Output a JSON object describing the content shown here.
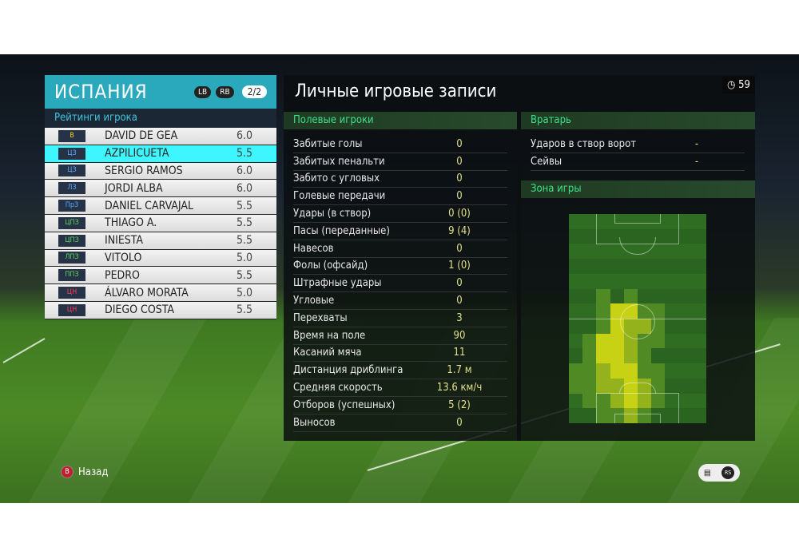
{
  "team": {
    "name": "ИСПАНИЯ",
    "lb": "LB",
    "rb": "RB",
    "page": "2/2",
    "ratings_label": "Рейтинги игрока"
  },
  "players": [
    {
      "pos": "В",
      "pos_color": "#f0d020",
      "name": "DAVID DE GEA",
      "rating": "6.0"
    },
    {
      "pos": "ЦЗ",
      "pos_color": "#5aa8ff",
      "name": "AZPILICUETA",
      "rating": "5.5",
      "selected": true
    },
    {
      "pos": "ЦЗ",
      "pos_color": "#5aa8ff",
      "name": "SERGIO RAMOS",
      "rating": "6.0"
    },
    {
      "pos": "ЛЗ",
      "pos_color": "#5aa8ff",
      "name": "JORDI ALBA",
      "rating": "6.0"
    },
    {
      "pos": "ПрЗ",
      "pos_color": "#5aa8ff",
      "name": "DANIEL CARVAJAL",
      "rating": "5.5"
    },
    {
      "pos": "ЦПЗ",
      "pos_color": "#5ed65e",
      "name": "THIAGO A.",
      "rating": "5.5"
    },
    {
      "pos": "ЦПЗ",
      "pos_color": "#5ed65e",
      "name": "INIESTA",
      "rating": "5.5"
    },
    {
      "pos": "ЛПЗ",
      "pos_color": "#5ed65e",
      "name": "VITOLO",
      "rating": "5.0"
    },
    {
      "pos": "ППЗ",
      "pos_color": "#5ed65e",
      "name": "PEDRO",
      "rating": "5.5"
    },
    {
      "pos": "ЦН",
      "pos_color": "#ff3b5c",
      "name": "ÁLVARO MORATA",
      "rating": "5.0"
    },
    {
      "pos": "ЦН",
      "pos_color": "#ff3b5c",
      "name": "DIEGO COSTA",
      "rating": "5.5"
    }
  ],
  "main": {
    "title": "Личные игровые записи",
    "timer": "59",
    "timer_icon": "clock-icon"
  },
  "field": {
    "title": "Полевые игроки",
    "stats": [
      {
        "label": "Забитые голы",
        "value": "0"
      },
      {
        "label": "Забитых пенальти",
        "value": "0"
      },
      {
        "label": "Забито с угловых",
        "value": "0"
      },
      {
        "label": "Голевые передачи",
        "value": "0"
      },
      {
        "label": "Удары (в створ)",
        "value": "0 (0)"
      },
      {
        "label": "Пасы (переданные)",
        "value": "9 (4)"
      },
      {
        "label": "Навесов",
        "value": "0"
      },
      {
        "label": "Фолы (офсайд)",
        "value": "1 (0)"
      },
      {
        "label": "Штрафные удары",
        "value": "0"
      },
      {
        "label": "Угловые",
        "value": "0"
      },
      {
        "label": "Перехваты",
        "value": "3"
      },
      {
        "label": "Время на поле",
        "value": "90"
      },
      {
        "label": "Касаний мяча",
        "value": "11"
      },
      {
        "label": "Дистанция дриблинга",
        "value": "1.7 м"
      },
      {
        "label": "Средняя скорость",
        "value": "13.6 км/ч"
      },
      {
        "label": "Отборов (успешных)",
        "value": "5 (2)"
      },
      {
        "label": "Выносов",
        "value": "0"
      }
    ]
  },
  "goalkeeper": {
    "title": "Вратарь",
    "stats": [
      {
        "label": "Ударов в створ ворот",
        "value": "-"
      },
      {
        "label": "Сейвы",
        "value": "-"
      }
    ]
  },
  "zone": {
    "title": "Зона игры",
    "heatmap": [
      [
        0,
        0,
        0,
        0,
        0,
        0,
        0,
        0,
        0,
        0
      ],
      [
        0,
        0,
        0,
        0,
        0,
        0,
        0,
        0,
        0,
        0
      ],
      [
        0,
        0,
        0,
        0,
        0,
        0,
        0,
        0,
        0,
        0
      ],
      [
        0,
        0,
        0,
        0,
        0,
        0,
        0,
        0,
        0,
        0
      ],
      [
        0,
        0,
        0,
        0,
        0,
        0,
        0,
        0,
        0,
        0
      ],
      [
        0,
        0,
        1,
        0,
        1,
        0,
        0,
        0,
        0,
        0
      ],
      [
        0,
        0,
        1,
        3,
        3,
        1,
        1,
        0,
        0,
        0
      ],
      [
        0,
        0,
        1,
        3,
        2,
        2,
        1,
        0,
        0,
        0
      ],
      [
        0,
        1,
        3,
        3,
        2,
        1,
        1,
        0,
        0,
        0
      ],
      [
        0,
        1,
        3,
        3,
        2,
        1,
        0,
        0,
        0,
        0
      ],
      [
        1,
        1,
        2,
        3,
        3,
        1,
        1,
        0,
        0,
        0
      ],
      [
        1,
        1,
        2,
        2,
        3,
        2,
        1,
        0,
        0,
        0
      ],
      [
        0,
        1,
        1,
        2,
        3,
        2,
        1,
        0,
        0,
        0
      ],
      [
        0,
        0,
        1,
        1,
        2,
        1,
        0,
        0,
        0,
        0
      ]
    ],
    "colors": [
      "#2f6e22",
      "#4f8a24",
      "#93b21c",
      "#c8d214"
    ]
  },
  "footer": {
    "back_button": "B",
    "back_label": "Назад",
    "chat_icon": "chat-icon",
    "rs_icon": "RS"
  }
}
